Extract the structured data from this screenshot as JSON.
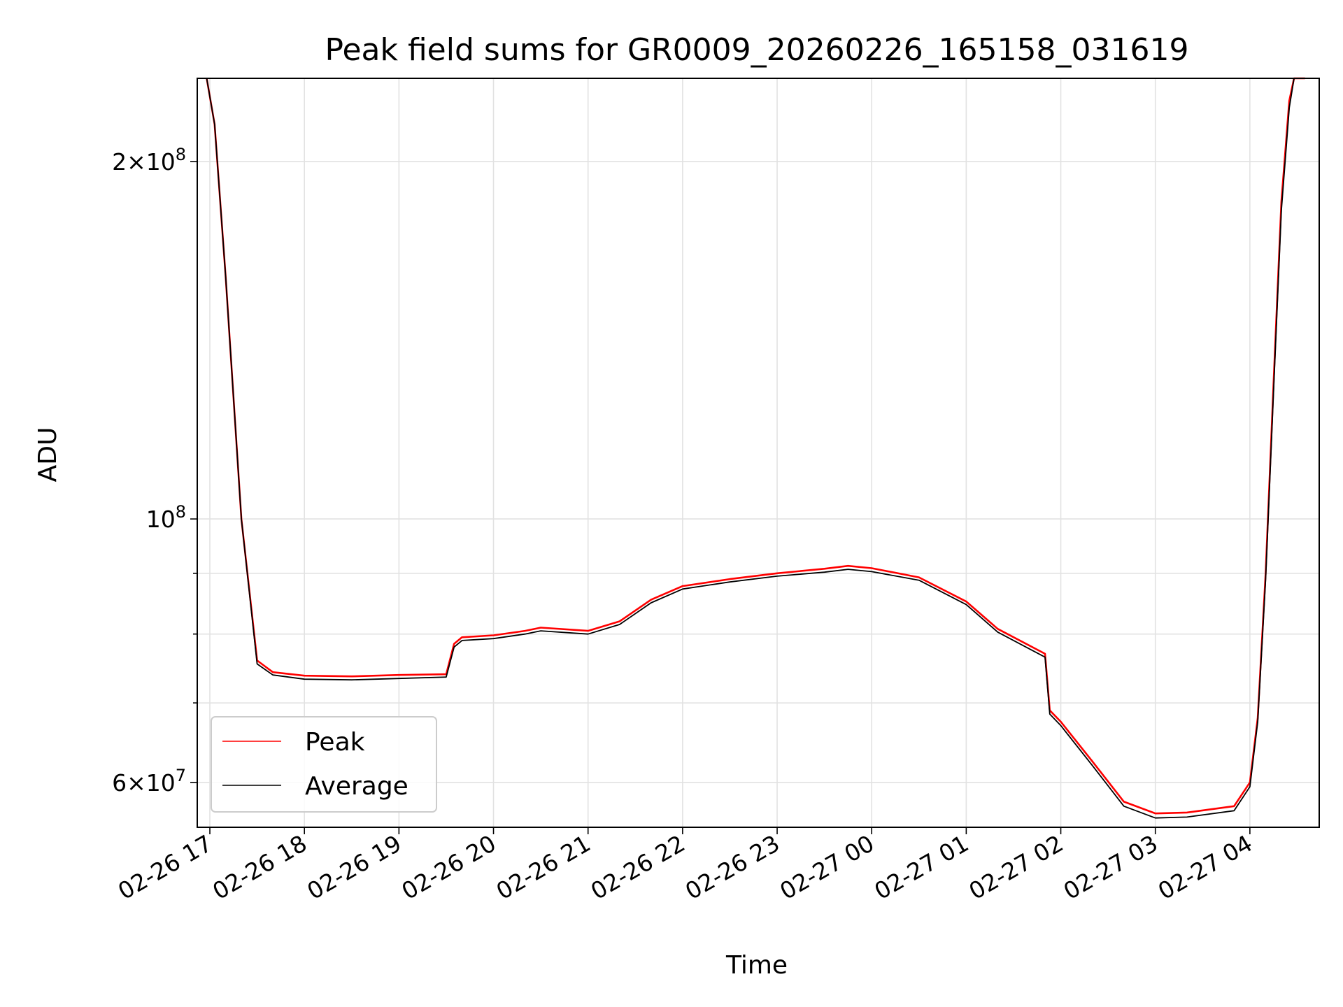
{
  "chart_data": {
    "type": "line",
    "title": "Peak field sums for GR0009_20260226_165158_031619",
    "xlabel": "Time",
    "ylabel": "ADU",
    "yscale": "log",
    "xlim": [
      "2026-02-26 16:52",
      "2026-02-27 04:44"
    ],
    "ylim": [
      55000000,
      235000000
    ],
    "grid": true,
    "legend_position": "lower-left",
    "x_ticks": [
      "02-26 17",
      "02-26 18",
      "02-26 19",
      "02-26 20",
      "02-26 21",
      "02-26 22",
      "02-26 23",
      "02-27 00",
      "02-27 01",
      "02-27 02",
      "02-27 03",
      "02-27 04"
    ],
    "x_tick_times": [
      "2026-02-26 17:00",
      "2026-02-26 18:00",
      "2026-02-26 19:00",
      "2026-02-26 20:00",
      "2026-02-26 21:00",
      "2026-02-26 22:00",
      "2026-02-26 23:00",
      "2026-02-27 00:00",
      "2026-02-27 01:00",
      "2026-02-27 02:00",
      "2026-02-27 03:00",
      "2026-02-27 04:00"
    ],
    "y_major_ticks": [
      {
        "value": 200000000,
        "mantissa": "2",
        "exp": "8"
      },
      {
        "value": 100000000,
        "mantissa": "",
        "exp": "8"
      },
      {
        "value": 60000000,
        "mantissa": "6",
        "exp": "7"
      }
    ],
    "y_minor_grid": [
      70000000,
      80000000,
      90000000
    ],
    "series": [
      {
        "name": "Peak",
        "color": "#ff0000",
        "x": [
          "2026-02-26 16:58",
          "2026-02-26 17:03",
          "2026-02-26 17:10",
          "2026-02-26 17:20",
          "2026-02-26 17:30",
          "2026-02-26 17:40",
          "2026-02-26 18:00",
          "2026-02-26 18:30",
          "2026-02-26 19:00",
          "2026-02-26 19:30",
          "2026-02-26 19:35",
          "2026-02-26 19:40",
          "2026-02-26 20:00",
          "2026-02-26 20:20",
          "2026-02-26 20:30",
          "2026-02-26 21:00",
          "2026-02-26 21:20",
          "2026-02-26 21:40",
          "2026-02-26 22:00",
          "2026-02-26 22:30",
          "2026-02-26 23:00",
          "2026-02-26 23:30",
          "2026-02-26 23:45",
          "2026-02-27 00:00",
          "2026-02-27 00:30",
          "2026-02-27 01:00",
          "2026-02-27 01:20",
          "2026-02-27 01:50",
          "2026-02-27 01:53",
          "2026-02-27 02:00",
          "2026-02-27 02:20",
          "2026-02-27 02:40",
          "2026-02-27 03:00",
          "2026-02-27 03:20",
          "2026-02-27 03:50",
          "2026-02-27 04:00",
          "2026-02-27 04:05",
          "2026-02-27 04:10",
          "2026-02-27 04:15",
          "2026-02-27 04:20",
          "2026-02-27 04:25",
          "2026-02-27 04:28",
          "2026-02-27 04:35"
        ],
        "y": [
          235000000,
          215000000,
          160000000,
          100000000,
          76000000,
          74300000,
          73800000,
          73700000,
          73900000,
          74000000,
          78500000,
          79500000,
          79800000,
          80500000,
          81000000,
          80500000,
          82000000,
          85500000,
          87800000,
          89000000,
          90000000,
          90800000,
          91300000,
          90900000,
          89300000,
          85200000,
          80800000,
          77000000,
          69000000,
          67500000,
          62500000,
          57800000,
          56500000,
          56600000,
          57300000,
          60000000,
          68000000,
          90000000,
          130000000,
          185000000,
          225000000,
          235000000,
          235000000
        ]
      },
      {
        "name": "Average",
        "color": "#000000",
        "x": [
          "2026-02-26 16:58",
          "2026-02-26 17:03",
          "2026-02-26 17:10",
          "2026-02-26 17:20",
          "2026-02-26 17:30",
          "2026-02-26 17:40",
          "2026-02-26 18:00",
          "2026-02-26 18:30",
          "2026-02-26 19:00",
          "2026-02-26 19:30",
          "2026-02-26 19:35",
          "2026-02-26 19:40",
          "2026-02-26 20:00",
          "2026-02-26 20:20",
          "2026-02-26 20:30",
          "2026-02-26 21:00",
          "2026-02-26 21:20",
          "2026-02-26 21:40",
          "2026-02-26 22:00",
          "2026-02-26 22:30",
          "2026-02-26 23:00",
          "2026-02-26 23:30",
          "2026-02-26 23:45",
          "2026-02-27 00:00",
          "2026-02-27 00:30",
          "2026-02-27 01:00",
          "2026-02-27 01:20",
          "2026-02-27 01:50",
          "2026-02-27 01:53",
          "2026-02-27 02:00",
          "2026-02-27 02:20",
          "2026-02-27 02:40",
          "2026-02-27 03:00",
          "2026-02-27 03:20",
          "2026-02-27 03:50",
          "2026-02-27 04:00",
          "2026-02-27 04:05",
          "2026-02-27 04:10",
          "2026-02-27 04:15",
          "2026-02-27 04:20",
          "2026-02-27 04:25",
          "2026-02-27 04:28",
          "2026-02-27 04:35"
        ],
        "y": [
          235000000,
          215000000,
          160000000,
          100000000,
          75500000,
          73900000,
          73300000,
          73200000,
          73400000,
          73600000,
          78000000,
          79000000,
          79300000,
          80000000,
          80500000,
          80000000,
          81500000,
          85000000,
          87300000,
          88500000,
          89500000,
          90200000,
          90700000,
          90300000,
          88800000,
          84700000,
          80300000,
          76500000,
          68500000,
          67000000,
          62000000,
          57300000,
          56000000,
          56100000,
          56800000,
          59500000,
          67500000,
          89000000,
          128000000,
          182000000,
          222000000,
          235000000,
          235000000
        ]
      }
    ]
  }
}
